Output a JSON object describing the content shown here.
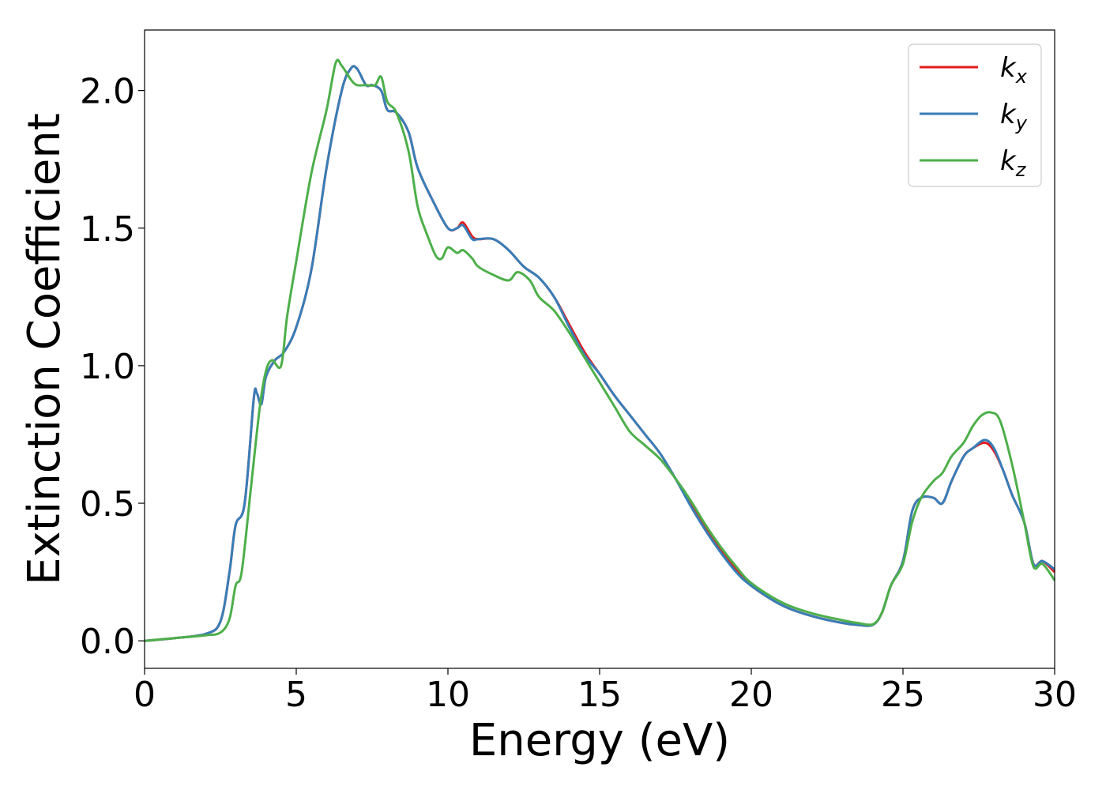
{
  "chart_data": {
    "type": "line",
    "xlabel": "Energy (eV)",
    "ylabel": "Extinction Coefficient",
    "xlim": [
      0,
      30
    ],
    "ylim": [
      -0.1,
      2.22
    ],
    "xticks": [
      0,
      5,
      10,
      15,
      20,
      25,
      30
    ],
    "xtick_labels": [
      "0",
      "5",
      "10",
      "15",
      "20",
      "25",
      "30"
    ],
    "yticks": [
      0.0,
      0.5,
      1.0,
      1.5,
      2.0
    ],
    "ytick_labels": [
      "0.0",
      "0.5",
      "1.0",
      "1.5",
      "2.0"
    ],
    "grid": false,
    "legend_position": "top-right",
    "series": [
      {
        "name": "kx",
        "base": "k",
        "sub": "x",
        "color": "#e41a1c",
        "x": [
          0,
          1,
          2,
          2.5,
          2.8,
          3.0,
          3.3,
          3.6,
          3.7,
          3.85,
          4.0,
          4.3,
          4.6,
          5.0,
          5.5,
          6.0,
          6.5,
          6.8,
          7.0,
          7.3,
          7.5,
          7.8,
          8.0,
          8.3,
          8.7,
          9.0,
          9.5,
          10.0,
          10.3,
          10.5,
          10.8,
          11.0,
          11.5,
          12.0,
          12.5,
          13.0,
          13.5,
          14.0,
          14.5,
          15.0,
          15.5,
          16.0,
          16.5,
          17.0,
          17.5,
          18.0,
          18.5,
          19.0,
          19.5,
          20.0,
          21.0,
          22.0,
          23.0,
          23.5,
          24.0,
          24.3,
          24.6,
          25.0,
          25.3,
          25.6,
          26.0,
          26.3,
          26.6,
          27.0,
          27.3,
          27.7,
          28.0,
          28.3,
          28.6,
          29.0,
          29.3,
          29.6,
          30.0
        ],
        "y": [
          0.0,
          0.01,
          0.025,
          0.07,
          0.25,
          0.42,
          0.5,
          0.88,
          0.9,
          0.86,
          0.96,
          1.02,
          1.05,
          1.14,
          1.35,
          1.72,
          2.0,
          2.08,
          2.08,
          2.02,
          2.02,
          2.0,
          1.93,
          1.92,
          1.85,
          1.72,
          1.6,
          1.5,
          1.5,
          1.52,
          1.47,
          1.46,
          1.46,
          1.42,
          1.36,
          1.32,
          1.25,
          1.15,
          1.05,
          0.97,
          0.89,
          0.82,
          0.75,
          0.68,
          0.59,
          0.5,
          0.41,
          0.33,
          0.26,
          0.2,
          0.13,
          0.09,
          0.065,
          0.058,
          0.058,
          0.1,
          0.2,
          0.29,
          0.47,
          0.52,
          0.52,
          0.5,
          0.58,
          0.67,
          0.7,
          0.72,
          0.69,
          0.62,
          0.53,
          0.43,
          0.28,
          0.29,
          0.25
        ]
      },
      {
        "name": "ky",
        "base": "k",
        "sub": "y",
        "color": "#377eb8",
        "x": [
          0,
          1,
          2,
          2.5,
          2.8,
          3.0,
          3.3,
          3.6,
          3.7,
          3.85,
          4.0,
          4.3,
          4.6,
          5.0,
          5.5,
          6.0,
          6.5,
          6.8,
          7.0,
          7.3,
          7.5,
          7.8,
          8.0,
          8.3,
          8.7,
          9.0,
          9.5,
          10.0,
          10.3,
          10.5,
          10.8,
          11.0,
          11.5,
          12.0,
          12.5,
          13.0,
          13.5,
          14.0,
          14.5,
          15.0,
          15.5,
          16.0,
          16.5,
          17.0,
          17.5,
          18.0,
          18.5,
          19.0,
          19.5,
          20.0,
          21.0,
          22.0,
          23.0,
          23.5,
          24.0,
          24.3,
          24.6,
          25.0,
          25.3,
          25.6,
          26.0,
          26.3,
          26.6,
          27.0,
          27.3,
          27.7,
          28.0,
          28.3,
          28.6,
          29.0,
          29.3,
          29.6,
          30.0
        ],
        "y": [
          0.0,
          0.01,
          0.025,
          0.07,
          0.25,
          0.42,
          0.5,
          0.88,
          0.9,
          0.86,
          0.96,
          1.02,
          1.05,
          1.14,
          1.35,
          1.72,
          2.0,
          2.08,
          2.08,
          2.02,
          2.02,
          2.0,
          1.93,
          1.92,
          1.85,
          1.72,
          1.6,
          1.5,
          1.5,
          1.51,
          1.46,
          1.46,
          1.46,
          1.42,
          1.36,
          1.32,
          1.25,
          1.14,
          1.04,
          0.97,
          0.89,
          0.82,
          0.75,
          0.68,
          0.59,
          0.49,
          0.4,
          0.32,
          0.25,
          0.2,
          0.13,
          0.09,
          0.065,
          0.058,
          0.058,
          0.1,
          0.2,
          0.29,
          0.47,
          0.52,
          0.52,
          0.5,
          0.58,
          0.67,
          0.7,
          0.73,
          0.7,
          0.62,
          0.53,
          0.43,
          0.28,
          0.29,
          0.26
        ]
      },
      {
        "name": "kz",
        "base": "k",
        "sub": "z",
        "color": "#4daf4a",
        "x": [
          0,
          1,
          2,
          2.5,
          2.8,
          3.0,
          3.2,
          3.5,
          3.8,
          4.0,
          4.2,
          4.5,
          4.7,
          5.0,
          5.5,
          6.0,
          6.3,
          6.5,
          6.8,
          7.0,
          7.3,
          7.6,
          7.8,
          8.0,
          8.3,
          8.7,
          9.0,
          9.3,
          9.6,
          9.8,
          10.0,
          10.3,
          10.5,
          10.8,
          11.0,
          11.5,
          12.0,
          12.3,
          12.7,
          13.0,
          13.5,
          14.0,
          14.5,
          15.0,
          15.5,
          16.0,
          16.5,
          17.0,
          17.5,
          18.0,
          18.5,
          19.0,
          19.5,
          20.0,
          21.0,
          22.0,
          23.0,
          23.5,
          24.0,
          24.3,
          24.6,
          25.0,
          25.3,
          25.6,
          26.0,
          26.3,
          26.6,
          27.0,
          27.3,
          27.6,
          27.9,
          28.2,
          28.6,
          29.0,
          29.3,
          29.6,
          30.0
        ],
        "y": [
          0.0,
          0.01,
          0.02,
          0.03,
          0.08,
          0.2,
          0.25,
          0.55,
          0.85,
          0.98,
          1.02,
          1.0,
          1.18,
          1.38,
          1.7,
          1.93,
          2.1,
          2.09,
          2.04,
          2.02,
          2.02,
          2.02,
          2.05,
          1.96,
          1.92,
          1.78,
          1.58,
          1.48,
          1.4,
          1.39,
          1.43,
          1.41,
          1.42,
          1.39,
          1.36,
          1.33,
          1.31,
          1.34,
          1.31,
          1.25,
          1.2,
          1.12,
          1.03,
          0.94,
          0.85,
          0.76,
          0.71,
          0.66,
          0.59,
          0.51,
          0.42,
          0.34,
          0.27,
          0.21,
          0.14,
          0.1,
          0.075,
          0.065,
          0.06,
          0.1,
          0.2,
          0.28,
          0.43,
          0.52,
          0.58,
          0.61,
          0.67,
          0.72,
          0.78,
          0.82,
          0.83,
          0.8,
          0.64,
          0.43,
          0.27,
          0.28,
          0.22
        ]
      }
    ]
  }
}
